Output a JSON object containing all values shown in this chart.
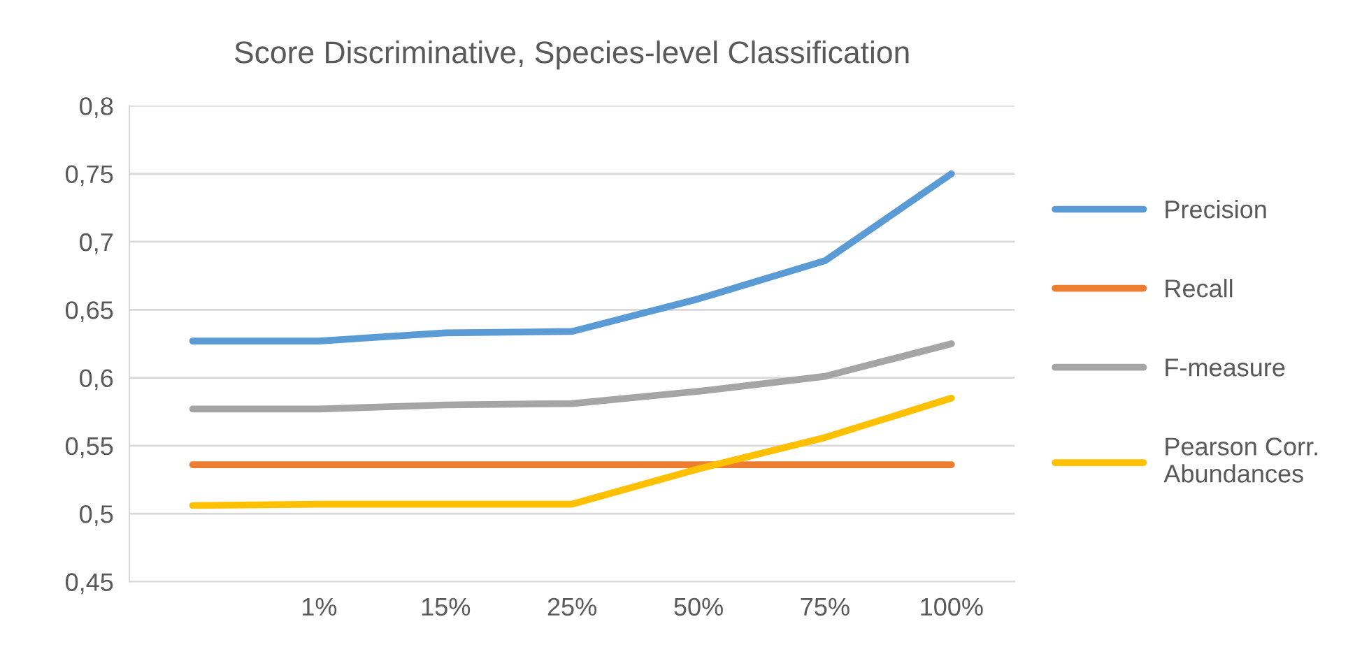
{
  "chart_data": {
    "type": "line",
    "title": "Score Discriminative, Species-level Classification",
    "categories": [
      null,
      "1%",
      "15%",
      "25%",
      "50%",
      "75%",
      "100%"
    ],
    "series": [
      {
        "name": "Precision",
        "color": "#5b9bd5",
        "values": [
          0.627,
          0.627,
          0.633,
          0.634,
          0.658,
          0.686,
          0.75
        ]
      },
      {
        "name": "Recall",
        "color": "#ed7d31",
        "values": [
          0.536,
          0.536,
          0.536,
          0.536,
          0.536,
          0.536,
          0.536
        ]
      },
      {
        "name": "F-measure",
        "color": "#a5a5a5",
        "values": [
          0.577,
          0.577,
          0.58,
          0.581,
          0.59,
          0.601,
          0.625
        ]
      },
      {
        "name": "Pearson Corr. Abundances",
        "color": "#ffc000",
        "values": [
          0.506,
          0.507,
          0.507,
          0.507,
          0.533,
          0.556,
          0.585
        ]
      }
    ],
    "ylim": [
      0.45,
      0.8
    ],
    "yticks": [
      {
        "value": 0.45,
        "label": "0,45"
      },
      {
        "value": 0.5,
        "label": "0,5"
      },
      {
        "value": 0.55,
        "label": "0,55"
      },
      {
        "value": 0.6,
        "label": "0,6"
      },
      {
        "value": 0.65,
        "label": "0,65"
      },
      {
        "value": 0.7,
        "label": "0,7"
      },
      {
        "value": 0.75,
        "label": "0,75"
      },
      {
        "value": 0.8,
        "label": "0,8"
      }
    ],
    "grid": "y",
    "legend": "right",
    "marker": "none",
    "line_style": "solid"
  }
}
